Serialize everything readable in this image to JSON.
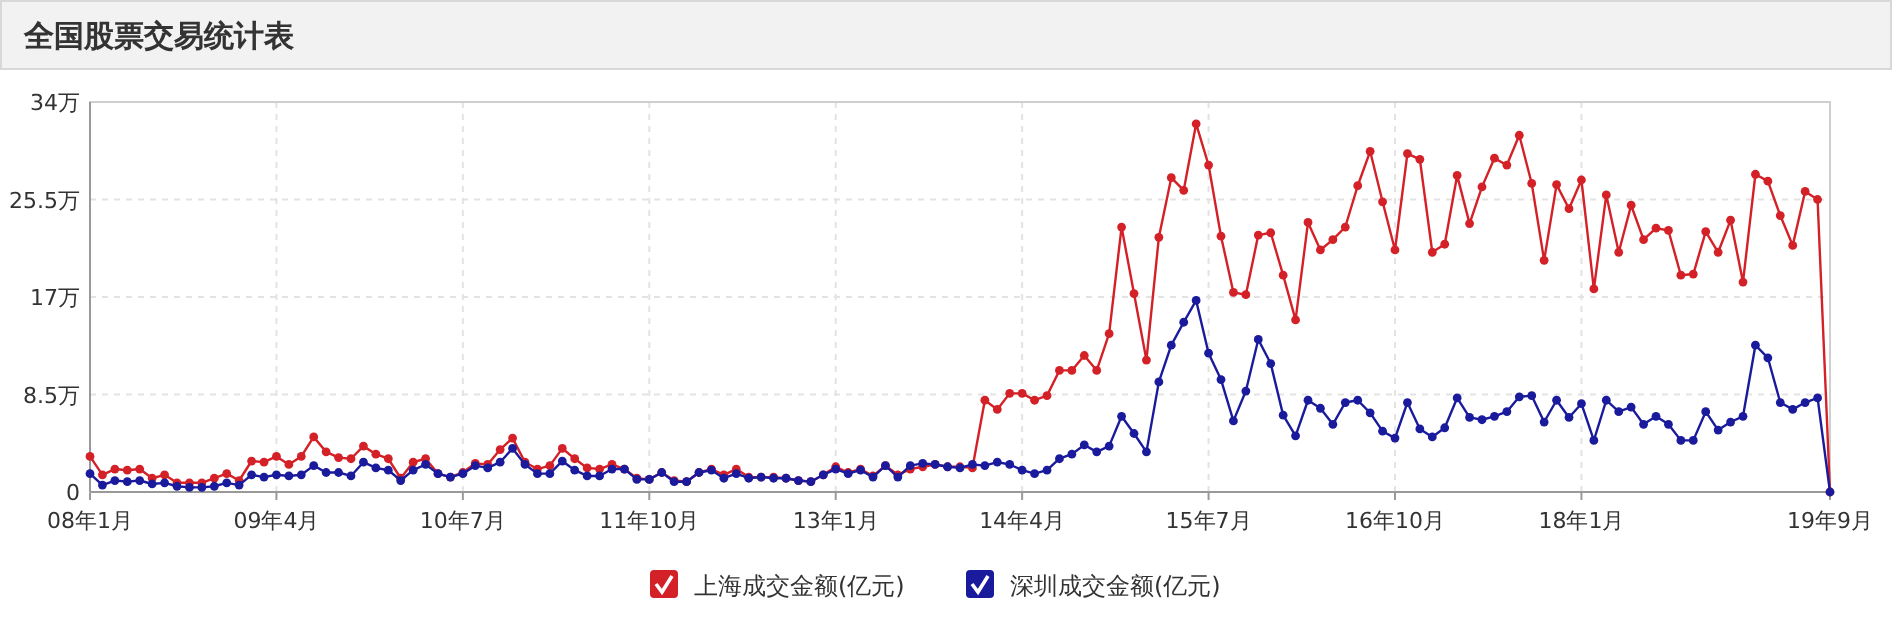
{
  "chart_data": {
    "type": "line",
    "title": "全国股票交易统计表",
    "categories": [
      "08年1月",
      null,
      null,
      null,
      null,
      null,
      null,
      null,
      null,
      null,
      null,
      null,
      null,
      null,
      null,
      "09年4月",
      null,
      null,
      null,
      null,
      null,
      null,
      null,
      null,
      null,
      null,
      null,
      null,
      null,
      null,
      "10年7月",
      null,
      null,
      null,
      null,
      null,
      null,
      null,
      null,
      null,
      null,
      null,
      null,
      null,
      null,
      "11年10月",
      null,
      null,
      null,
      null,
      null,
      null,
      null,
      null,
      null,
      null,
      null,
      null,
      null,
      null,
      "13年1月",
      null,
      null,
      null,
      null,
      null,
      null,
      null,
      null,
      null,
      null,
      null,
      null,
      null,
      null,
      "14年4月",
      null,
      null,
      null,
      null,
      null,
      null,
      null,
      null,
      null,
      null,
      null,
      null,
      null,
      null,
      "15年7月",
      null,
      null,
      null,
      null,
      null,
      null,
      null,
      null,
      null,
      null,
      null,
      null,
      null,
      null,
      "16年10月",
      null,
      null,
      null,
      null,
      null,
      null,
      null,
      null,
      null,
      null,
      null,
      null,
      null,
      null,
      "18年1月",
      null,
      null,
      null,
      null,
      null,
      null,
      null,
      null,
      null,
      null,
      null,
      null,
      null,
      null,
      null,
      null,
      null,
      null,
      null,
      "19年9月"
    ],
    "series": [
      {
        "name": "上海成交金额(亿元)",
        "color": "#d42027",
        "values": [
          3.1,
          1.5,
          2.0,
          1.9,
          2.0,
          1.2,
          1.5,
          0.8,
          0.8,
          0.8,
          1.2,
          1.6,
          1.0,
          2.7,
          2.6,
          3.1,
          2.4,
          3.1,
          4.8,
          3.5,
          3.0,
          2.9,
          4.0,
          3.3,
          2.9,
          1.2,
          2.6,
          2.9,
          1.6,
          1.3,
          1.7,
          2.5,
          2.4,
          3.7,
          4.7,
          2.6,
          2.0,
          2.3,
          3.8,
          2.9,
          2.1,
          2.0,
          2.4,
          2.0,
          1.2,
          1.1,
          1.7,
          1.0,
          0.9,
          1.7,
          2.0,
          1.5,
          2.0,
          1.3,
          1.3,
          1.3,
          1.2,
          1.0,
          0.9,
          1.5,
          2.2,
          1.7,
          2.0,
          1.4,
          2.3,
          1.5,
          2.0,
          2.2,
          2.4,
          2.2,
          2.2,
          2.1,
          8.0,
          7.2,
          8.6,
          8.6,
          8.0,
          8.4,
          10.6,
          10.6,
          11.9,
          10.6,
          13.8,
          23.1,
          17.3,
          11.5,
          22.2,
          27.4,
          26.3,
          32.1,
          28.5,
          22.3,
          17.4,
          17.2,
          22.4,
          22.6,
          18.9,
          15.0,
          23.5,
          21.1,
          22.0,
          23.1,
          26.7,
          29.7,
          25.3,
          21.1,
          29.5,
          29.0,
          20.9,
          21.6,
          27.6,
          23.4,
          26.6,
          29.1,
          28.5,
          31.1,
          26.9,
          20.2,
          26.8,
          24.7,
          27.2,
          17.7,
          25.9,
          20.9,
          25.0,
          22.0,
          23.0,
          22.8,
          18.9,
          19.0,
          22.7,
          20.9,
          23.7,
          18.3,
          27.7,
          27.1,
          24.1,
          21.5,
          26.2,
          25.5,
          0
        ]
      },
      {
        "name": "深圳成交金额(亿元)",
        "color": "#1a1a9c",
        "values": [
          1.6,
          0.6,
          1.0,
          0.9,
          1.0,
          0.7,
          0.8,
          0.5,
          0.4,
          0.4,
          0.5,
          0.8,
          0.6,
          1.5,
          1.3,
          1.5,
          1.4,
          1.5,
          2.3,
          1.7,
          1.7,
          1.4,
          2.6,
          2.1,
          1.9,
          1.0,
          1.9,
          2.4,
          1.6,
          1.3,
          1.6,
          2.3,
          2.1,
          2.6,
          3.8,
          2.4,
          1.6,
          1.6,
          2.7,
          1.9,
          1.4,
          1.4,
          2.0,
          2.0,
          1.1,
          1.1,
          1.7,
          0.9,
          0.9,
          1.7,
          1.9,
          1.2,
          1.6,
          1.2,
          1.3,
          1.2,
          1.2,
          1.0,
          0.9,
          1.5,
          2.0,
          1.6,
          1.9,
          1.3,
          2.3,
          1.3,
          2.3,
          2.5,
          2.4,
          2.2,
          2.1,
          2.4,
          2.3,
          2.6,
          2.4,
          1.9,
          1.6,
          1.9,
          2.9,
          3.3,
          4.1,
          3.5,
          4.0,
          6.6,
          5.1,
          3.5,
          9.6,
          12.8,
          14.8,
          16.7,
          12.1,
          9.8,
          6.2,
          8.8,
          13.3,
          11.2,
          6.7,
          4.9,
          8.0,
          7.3,
          5.9,
          7.8,
          8.0,
          6.9,
          5.3,
          4.7,
          7.8,
          5.5,
          4.8,
          5.6,
          8.2,
          6.5,
          6.3,
          6.6,
          7.0,
          8.3,
          8.4,
          6.1,
          8.0,
          6.5,
          7.7,
          4.5,
          8.0,
          7.0,
          7.4,
          5.9,
          6.6,
          5.9,
          4.5,
          4.5,
          7.0,
          5.4,
          6.1,
          6.6,
          12.8,
          11.7,
          7.8,
          7.2,
          7.8,
          8.2,
          0
        ]
      }
    ],
    "ylim": [
      0,
      34
    ],
    "yticks": [
      {
        "value": 0,
        "label": "0"
      },
      {
        "value": 8.5,
        "label": "8.5万"
      },
      {
        "value": 17,
        "label": "17万"
      },
      {
        "value": 25.5,
        "label": "25.5万"
      },
      {
        "value": 34,
        "label": "34万"
      }
    ],
    "grid": true,
    "legend": "bottom",
    "marker": "circle",
    "line_style": "solid"
  }
}
